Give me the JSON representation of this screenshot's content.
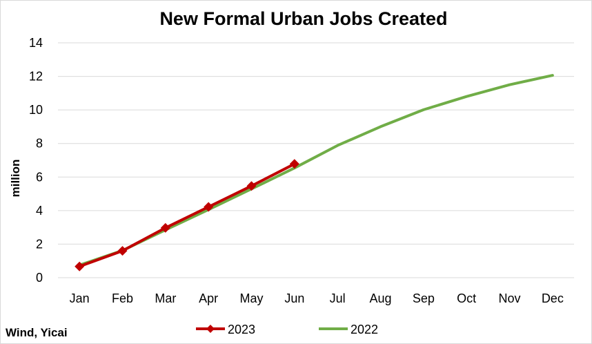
{
  "chart_data": {
    "type": "line",
    "title": "New Formal Urban Jobs Created",
    "xlabel": "",
    "ylabel": "million",
    "categories": [
      "Jan",
      "Feb",
      "Mar",
      "Apr",
      "May",
      "Jun",
      "Jul",
      "Aug",
      "Sep",
      "Oct",
      "Nov",
      "Dec"
    ],
    "ylim": [
      0,
      14
    ],
    "yticks": [
      "0",
      "2",
      "4",
      "6",
      "8",
      "10",
      "12",
      "14"
    ],
    "grid": "horizontal",
    "legend_position": "bottom",
    "series": [
      {
        "name": "2023",
        "color": "#c00000",
        "marker": "diamond",
        "values": [
          0.67,
          1.6,
          2.97,
          4.22,
          5.47,
          6.78,
          null,
          null,
          null,
          null,
          null,
          null
        ]
      },
      {
        "name": "2022",
        "color": "#70ad47",
        "marker": "none",
        "values": [
          0.75,
          1.62,
          2.85,
          4.06,
          5.29,
          6.54,
          7.88,
          9.0,
          10.01,
          10.8,
          11.5,
          12.06
        ]
      }
    ],
    "source_note": "Wind, Yicai"
  }
}
